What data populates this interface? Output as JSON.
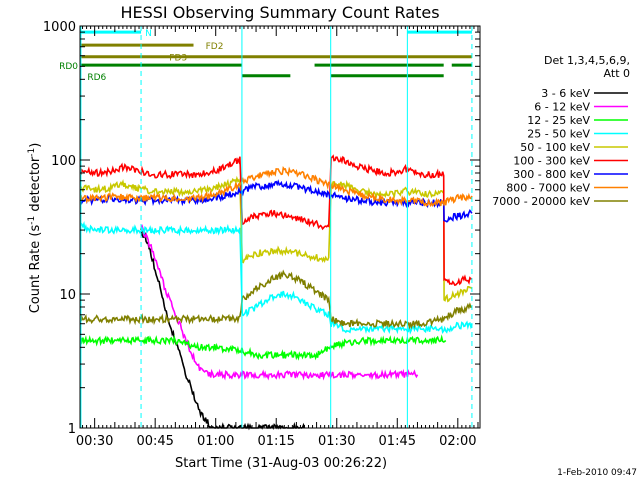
{
  "chart_data": {
    "type": "line",
    "title": "HESSI Observing Summary Count Rates",
    "xlabel": "Start Time (31-Aug-03 00:26:22)",
    "ylabel_main": "Count Rate (s",
    "ylabel_sup1": "-1",
    "ylabel_mid": " detector",
    "ylabel_sup2": "-1",
    "ylabel_end": ")",
    "yscale": "log",
    "ylim": [
      1,
      1000
    ],
    "xlim_minutes": [
      26.37,
      125.5
    ],
    "y_ticks": [
      {
        "value": 1,
        "label": "1"
      },
      {
        "value": 10,
        "label": "10"
      },
      {
        "value": 100,
        "label": "100"
      },
      {
        "value": 1000,
        "label": "1000"
      }
    ],
    "x_ticks": [
      {
        "minutes": 30,
        "label": "00:30"
      },
      {
        "minutes": 45,
        "label": "00:45"
      },
      {
        "minutes": 60,
        "label": "01:00"
      },
      {
        "minutes": 75,
        "label": "01:15"
      },
      {
        "minutes": 90,
        "label": "01:30"
      },
      {
        "minutes": 105,
        "label": "01:45"
      },
      {
        "minutes": 120,
        "label": "02:00"
      }
    ],
    "legend_header": [
      "Det 1,3,4,5,6,9,",
      "Att 0"
    ],
    "legend": [
      {
        "label": "3 - 6 keV",
        "color": "#000000"
      },
      {
        "label": "6 - 12 keV",
        "color": "#ff00ff"
      },
      {
        "label": "12 - 25 keV",
        "color": "#00ff00"
      },
      {
        "label": "25 - 50 keV",
        "color": "#00ffff"
      },
      {
        "label": "50 - 100 keV",
        "color": "#c8c800"
      },
      {
        "label": "100 - 300 keV",
        "color": "#ff0000"
      },
      {
        "label": "300 - 800 keV",
        "color": "#0000ff"
      },
      {
        "label": "800 - 7000 keV",
        "color": "#ff8000"
      },
      {
        "label": "7000 - 20000 keV",
        "color": "#808000"
      }
    ],
    "flags": [
      {
        "label": "N",
        "color": "#00ffff",
        "y_value": 900,
        "segments": [
          [
            26.4,
            41.5
          ],
          [
            107.5,
            123.5
          ]
        ]
      },
      {
        "label": "FD2",
        "color": "#808000",
        "y_value": 720,
        "segments": [
          [
            26.4,
            54.5
          ]
        ]
      },
      {
        "label": "FD3",
        "color": "#808000",
        "y_value": 590,
        "segments": [
          [
            26.4,
            123.5
          ]
        ]
      },
      {
        "label": "RD0",
        "color": "#008000",
        "y_value": 510,
        "segments": [
          [
            26.4,
            66.5
          ],
          [
            84.5,
            116.5
          ],
          [
            118.5,
            123.5
          ]
        ]
      },
      {
        "label": "RD6",
        "color": "#008000",
        "y_value": 425,
        "segments": [
          [
            66.5,
            78.5
          ],
          [
            88.5,
            116.5
          ]
        ]
      }
    ],
    "night_boundaries_cyan_solid": [
      26.6,
      66.5,
      88.5,
      107.5
    ],
    "night_boundaries_cyan_dashed": [
      41.5,
      123.5
    ],
    "series": [
      {
        "name": "3 - 6 keV",
        "color": "#000000",
        "points": [
          [
            41.5,
            30
          ],
          [
            42,
            28
          ],
          [
            43,
            25
          ],
          [
            44,
            20
          ],
          [
            45,
            15
          ],
          [
            46,
            12
          ],
          [
            47,
            9
          ],
          [
            48,
            7
          ],
          [
            49,
            5.5
          ],
          [
            50,
            4.5
          ],
          [
            51,
            3.6
          ],
          [
            52,
            2.8
          ],
          [
            53,
            2.3
          ],
          [
            54,
            2
          ],
          [
            55,
            1.6
          ],
          [
            56,
            1.3
          ],
          [
            58,
            1.1
          ],
          [
            60,
            1.0
          ],
          [
            62,
            1.0
          ],
          [
            66,
            1.0
          ],
          [
            70,
            1.0
          ],
          [
            74,
            1.0
          ],
          [
            78,
            1.0
          ],
          [
            82,
            1.0
          ]
        ]
      },
      {
        "name": "6 - 12 keV",
        "color": "#ff00ff",
        "points": [
          [
            41.5,
            32
          ],
          [
            42,
            29
          ],
          [
            43,
            26
          ],
          [
            44,
            22
          ],
          [
            45,
            18
          ],
          [
            46,
            15
          ],
          [
            47,
            12
          ],
          [
            48,
            10
          ],
          [
            49,
            8.5
          ],
          [
            50,
            7
          ],
          [
            51,
            6
          ],
          [
            52,
            5
          ],
          [
            53,
            4.2
          ],
          [
            54,
            3.6
          ],
          [
            55,
            3.2
          ],
          [
            56,
            2.8
          ],
          [
            58,
            2.5
          ],
          [
            60,
            2.5
          ],
          [
            66,
            2.5
          ],
          [
            72,
            2.5
          ],
          [
            80,
            2.5
          ],
          [
            88,
            2.5
          ],
          [
            96,
            2.5
          ],
          [
            104,
            2.5
          ],
          [
            110,
            2.5
          ]
        ]
      },
      {
        "name": "12 - 25 keV",
        "color": "#00ff00",
        "points": [
          [
            26.6,
            4.5
          ],
          [
            30,
            4.5
          ],
          [
            35,
            4.5
          ],
          [
            40,
            4.5
          ],
          [
            45,
            4.5
          ],
          [
            50,
            4.5
          ],
          [
            55,
            4.0
          ],
          [
            60,
            4.0
          ],
          [
            66,
            3.8
          ],
          [
            70,
            3.5
          ],
          [
            75,
            3.5
          ],
          [
            80,
            3.5
          ],
          [
            85,
            3.5
          ],
          [
            88,
            4.0
          ],
          [
            92,
            4.3
          ],
          [
            96,
            4.5
          ],
          [
            100,
            4.5
          ],
          [
            104,
            4.5
          ],
          [
            108,
            4.5
          ],
          [
            112,
            4.5
          ],
          [
            117,
            4.5
          ]
        ]
      },
      {
        "name": "25 - 50 keV",
        "color": "#00ffff",
        "points": [
          [
            26.6,
            32
          ],
          [
            30,
            30
          ],
          [
            35,
            30
          ],
          [
            40,
            30
          ],
          [
            45,
            30
          ],
          [
            50,
            30
          ],
          [
            55,
            30
          ],
          [
            60,
            30
          ],
          [
            63,
            30
          ],
          [
            66,
            30
          ],
          [
            66.6,
            7
          ],
          [
            70,
            8
          ],
          [
            74,
            9.5
          ],
          [
            77,
            10
          ],
          [
            80,
            9.5
          ],
          [
            84,
            8
          ],
          [
            88,
            7
          ],
          [
            88.6,
            6
          ],
          [
            92,
            5.5
          ],
          [
            96,
            5.5
          ],
          [
            100,
            5.5
          ],
          [
            104,
            5.5
          ],
          [
            108,
            5.5
          ],
          [
            112,
            5.5
          ],
          [
            116.5,
            5.5
          ],
          [
            118,
            5.5
          ],
          [
            120,
            5.8
          ],
          [
            123.5,
            6
          ]
        ]
      },
      {
        "name": "50 - 100 keV",
        "color": "#c8c800",
        "points": [
          [
            26.6,
            62
          ],
          [
            30,
            60
          ],
          [
            34,
            62
          ],
          [
            37,
            66
          ],
          [
            40,
            62
          ],
          [
            45,
            58
          ],
          [
            50,
            58
          ],
          [
            55,
            58
          ],
          [
            60,
            62
          ],
          [
            63,
            66
          ],
          [
            66,
            70
          ],
          [
            66.6,
            18
          ],
          [
            70,
            20
          ],
          [
            74,
            21
          ],
          [
            77,
            21
          ],
          [
            80,
            20
          ],
          [
            84,
            19
          ],
          [
            88,
            18
          ],
          [
            88.6,
            65
          ],
          [
            92,
            65
          ],
          [
            96,
            58
          ],
          [
            100,
            56
          ],
          [
            104,
            56
          ],
          [
            106,
            58
          ],
          [
            107,
            62
          ],
          [
            108,
            58
          ],
          [
            112,
            56
          ],
          [
            116.5,
            56
          ],
          [
            116.6,
            9
          ],
          [
            118,
            9.5
          ],
          [
            120,
            10
          ],
          [
            123.5,
            11
          ]
        ]
      },
      {
        "name": "100 - 300 keV",
        "color": "#ff0000",
        "points": [
          [
            26.6,
            82
          ],
          [
            30,
            80
          ],
          [
            34,
            82
          ],
          [
            37,
            88
          ],
          [
            40,
            84
          ],
          [
            45,
            78
          ],
          [
            50,
            78
          ],
          [
            55,
            78
          ],
          [
            60,
            84
          ],
          [
            63,
            92
          ],
          [
            66,
            100
          ],
          [
            66.6,
            35
          ],
          [
            70,
            38
          ],
          [
            74,
            40
          ],
          [
            77,
            39
          ],
          [
            80,
            37
          ],
          [
            84,
            34
          ],
          [
            88,
            31
          ],
          [
            88.6,
            105
          ],
          [
            92,
            100
          ],
          [
            96,
            88
          ],
          [
            100,
            82
          ],
          [
            104,
            80
          ],
          [
            106,
            82
          ],
          [
            107,
            86
          ],
          [
            108,
            82
          ],
          [
            112,
            78
          ],
          [
            116.5,
            78
          ],
          [
            116.6,
            13
          ],
          [
            118,
            12
          ],
          [
            120,
            12.5
          ],
          [
            123.5,
            13
          ]
        ]
      },
      {
        "name": "300 - 800 keV",
        "color": "#0000ff",
        "points": [
          [
            26.6,
            50
          ],
          [
            30,
            50
          ],
          [
            35,
            52
          ],
          [
            40,
            50
          ],
          [
            45,
            50
          ],
          [
            50,
            50
          ],
          [
            55,
            50
          ],
          [
            60,
            52
          ],
          [
            63,
            55
          ],
          [
            66,
            58
          ],
          [
            70,
            63
          ],
          [
            74,
            66
          ],
          [
            77,
            66
          ],
          [
            80,
            64
          ],
          [
            84,
            59
          ],
          [
            88,
            55
          ],
          [
            92,
            52
          ],
          [
            96,
            50
          ],
          [
            100,
            48
          ],
          [
            104,
            48
          ],
          [
            108,
            48
          ],
          [
            112,
            48
          ],
          [
            116.5,
            48
          ],
          [
            116.6,
            36
          ],
          [
            118,
            37
          ],
          [
            120,
            38
          ],
          [
            123.5,
            40
          ]
        ]
      },
      {
        "name": "800 - 7000 keV",
        "color": "#ff8000",
        "points": [
          [
            26.6,
            52
          ],
          [
            30,
            52
          ],
          [
            35,
            53
          ],
          [
            40,
            52
          ],
          [
            45,
            52
          ],
          [
            50,
            52
          ],
          [
            55,
            52
          ],
          [
            60,
            55
          ],
          [
            63,
            60
          ],
          [
            66,
            66
          ],
          [
            70,
            76
          ],
          [
            74,
            82
          ],
          [
            77,
            83
          ],
          [
            80,
            80
          ],
          [
            84,
            73
          ],
          [
            88,
            66
          ],
          [
            92,
            60
          ],
          [
            96,
            55
          ],
          [
            100,
            52
          ],
          [
            104,
            50
          ],
          [
            108,
            50
          ],
          [
            112,
            48
          ],
          [
            116.5,
            48
          ],
          [
            118,
            50
          ],
          [
            120,
            52
          ],
          [
            123.5,
            54
          ]
        ]
      },
      {
        "name": "7000 - 20000 keV",
        "color": "#808000",
        "points": [
          [
            26.6,
            6.5
          ],
          [
            30,
            6.5
          ],
          [
            35,
            6.5
          ],
          [
            40,
            6.5
          ],
          [
            45,
            6.5
          ],
          [
            50,
            6.5
          ],
          [
            55,
            6.5
          ],
          [
            60,
            6.5
          ],
          [
            66,
            6.5
          ],
          [
            66.6,
            9
          ],
          [
            70,
            11
          ],
          [
            74,
            13
          ],
          [
            77,
            14
          ],
          [
            80,
            13
          ],
          [
            84,
            11
          ],
          [
            88,
            9
          ],
          [
            88.6,
            6.5
          ],
          [
            92,
            6
          ],
          [
            96,
            6
          ],
          [
            100,
            6
          ],
          [
            104,
            6
          ],
          [
            108,
            6
          ],
          [
            112,
            6
          ],
          [
            116.5,
            6.5
          ],
          [
            118,
            7
          ],
          [
            120,
            7.5
          ],
          [
            123.5,
            8
          ]
        ]
      }
    ]
  },
  "footer_date": "1-Feb-2010 09:47"
}
